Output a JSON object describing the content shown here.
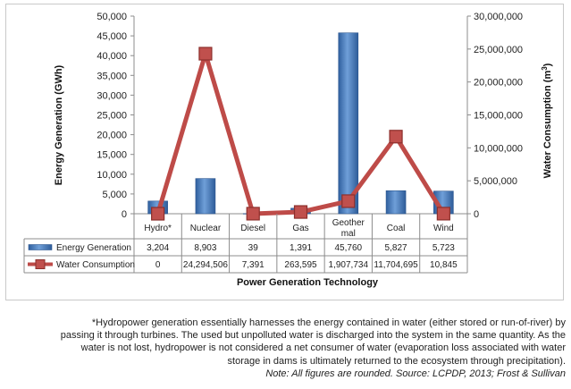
{
  "chart_data": {
    "type": "bar",
    "categories": [
      "Hydro*",
      "Nuclear",
      "Diesel",
      "Gas",
      "Geother mal",
      "Coal",
      "Wind"
    ],
    "series": [
      {
        "name": "Energy Generation",
        "kind": "bar",
        "axis": "left",
        "values": [
          3204,
          8903,
          39,
          1391,
          45760,
          5827,
          5723
        ],
        "labels": [
          "3,204",
          "8,903",
          "39",
          "1,391",
          "45,760",
          "5,827",
          "5,723"
        ],
        "color": "#4a7ebb"
      },
      {
        "name": "Water Consumption",
        "kind": "line",
        "axis": "right",
        "values": [
          0,
          24294506,
          7391,
          263595,
          1907734,
          11704695,
          10845
        ],
        "labels": [
          "0",
          "24,294,506",
          "7,391",
          "263,595",
          "1,907,734",
          "11,704,695",
          "10,845"
        ],
        "color": "#be4b48"
      }
    ],
    "xlabel": "Power Generation Technology",
    "ylabel": "Energy Generation (GWh)",
    "y2label_text": "Water Consumption (m",
    "y2label_sup": "3",
    "y2label_close": ")",
    "ylim": [
      0,
      50000
    ],
    "y2lim": [
      0,
      30000000
    ],
    "yticks": [
      "0",
      "5,000",
      "10,000",
      "15,000",
      "20,000",
      "25,000",
      "30,000",
      "35,000",
      "40,000",
      "45,000",
      "50,000"
    ],
    "y2ticks": [
      "0",
      "5,000,000",
      "10,000,000",
      "15,000,000",
      "20,000,000",
      "25,000,000",
      "30,000,000"
    ],
    "grid": false,
    "legend": "data-table"
  },
  "footnote": {
    "line1": "*Hydropower generation essentially harnesses the energy contained in water (either stored or run-of-river) by",
    "line2": "passing it through turbines. The used but unpolluted water is discharged into the system in the same quantity. As the",
    "line3": "water is not lost, hydropower is not considered a net consumer of water (evaporation loss associated with water",
    "line4": "storage in dams is ultimately returned to the ecosystem through precipitation).",
    "note": "Note: All figures are rounded. Source: LCPDP, 2013; Frost & Sullivan"
  }
}
